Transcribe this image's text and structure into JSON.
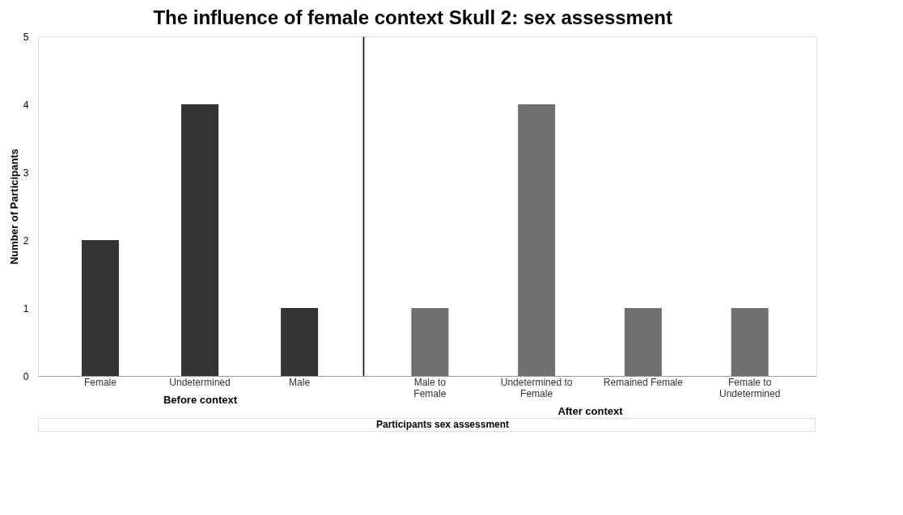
{
  "chart_data": [
    {
      "type": "bar",
      "title": "The influence of female context Skull 2: sex assessment",
      "ylabel": "Number of Participants",
      "xlabel": "Before context",
      "categories": [
        "Female",
        "Undetermined",
        "Male"
      ],
      "values": [
        2,
        4,
        1
      ],
      "color": "#333333",
      "ylim": [
        0,
        5
      ],
      "yticks": [
        0,
        1,
        2,
        3,
        4,
        5
      ],
      "grid": false,
      "annotations": [
        "Participants sex assessment"
      ]
    },
    {
      "type": "bar",
      "xlabel": "After context",
      "categories": [
        "Male to Female",
        "Undetermined to Female",
        "Remained Female",
        "Female to Undetermined"
      ],
      "values": [
        1,
        4,
        1,
        1
      ],
      "color": "#707070",
      "ylim": [
        0,
        5
      ],
      "yticks": [
        0,
        1,
        2,
        3,
        4,
        5
      ],
      "grid": false,
      "tick_labels": "x"
    }
  ]
}
